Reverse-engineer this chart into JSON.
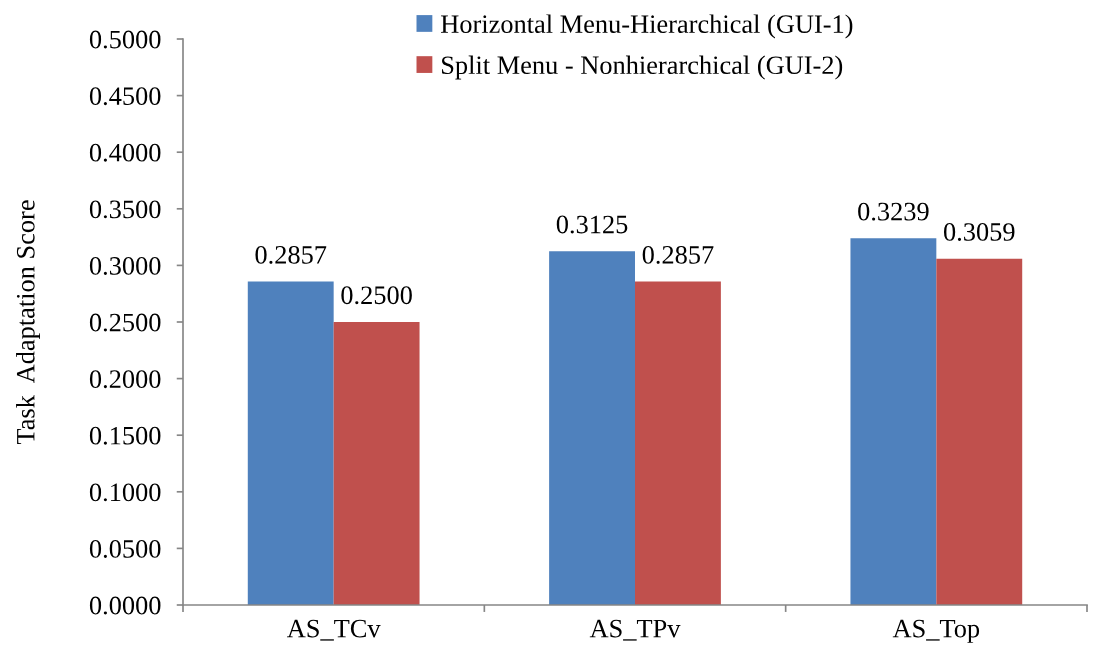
{
  "chart_data": {
    "type": "bar",
    "ylabel": "Task  Adaptation Score",
    "categories": [
      "AS_TCv",
      "AS_TPv",
      "AS_Top"
    ],
    "series": [
      {
        "name": "Horizontal Menu-Hierarchical (GUI-1)",
        "color": "#4f81bd",
        "values": [
          0.2857,
          0.3125,
          0.3239
        ],
        "value_labels": [
          "0.2857",
          "0.3125",
          "0.3239"
        ]
      },
      {
        "name": "Split Menu - Nonhierarchical (GUI-2)",
        "color": "#c0504d",
        "values": [
          0.25,
          0.2857,
          0.3059
        ],
        "value_labels": [
          "0.2500",
          "0.2857",
          "0.3059"
        ]
      }
    ],
    "ylim": [
      0,
      0.5
    ],
    "yticks": [
      {
        "value": 0,
        "label": "0.0000"
      },
      {
        "value": 0.05,
        "label": "0.0500"
      },
      {
        "value": 0.1,
        "label": "0.1000"
      },
      {
        "value": 0.15,
        "label": "0.1500"
      },
      {
        "value": 0.2,
        "label": "0.2000"
      },
      {
        "value": 0.25,
        "label": "0.2500"
      },
      {
        "value": 0.3,
        "label": "0.3000"
      },
      {
        "value": 0.35,
        "label": "0.3500"
      },
      {
        "value": 0.4,
        "label": "0.4000"
      },
      {
        "value": 0.45,
        "label": "0.4500"
      },
      {
        "value": 0.5,
        "label": "0.5000"
      }
    ],
    "legend": "top",
    "grid": false
  }
}
